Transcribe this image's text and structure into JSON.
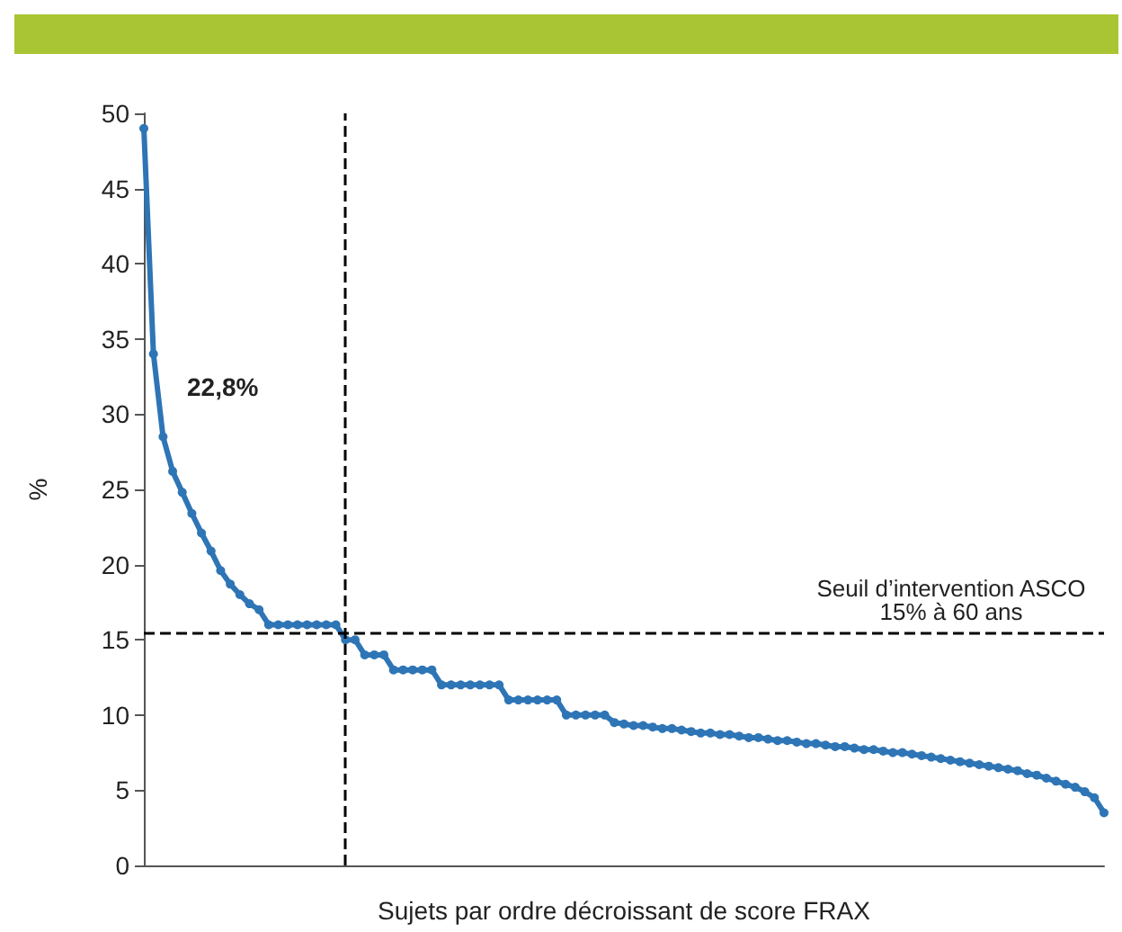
{
  "chart_data": {
    "type": "line",
    "xlabel": "Sujets par ordre décroissant de score FRAX",
    "ylabel": "%",
    "categories": [
      null,
      null,
      null,
      null,
      null,
      null,
      null,
      null,
      null,
      null,
      null,
      null,
      null,
      null,
      null,
      null,
      null,
      null,
      null,
      null,
      null,
      null,
      null,
      null,
      null,
      null,
      null,
      null,
      null,
      null,
      null,
      null,
      null,
      null,
      null,
      null,
      null,
      null,
      null,
      null,
      null,
      null,
      null,
      null,
      null,
      null,
      null,
      null,
      null,
      null,
      null,
      null,
      null,
      null,
      null,
      null,
      null,
      null,
      null,
      null,
      null,
      null,
      null,
      null,
      null,
      null,
      null,
      null,
      null,
      null,
      null,
      null,
      null,
      null,
      null,
      null,
      null,
      null,
      null,
      null,
      null,
      null,
      null,
      null,
      null,
      null,
      null,
      null,
      null,
      null,
      null,
      null,
      null,
      null,
      null,
      null,
      null,
      null,
      null,
      null,
      null
    ],
    "series": [
      {
        "color": "#2e75b6",
        "values": [
          49,
          34,
          28.5,
          26.2,
          24.8,
          23.4,
          22.1,
          20.9,
          19.6,
          18.7,
          18,
          17.4,
          17,
          16,
          16,
          16,
          16,
          16,
          16,
          16,
          16,
          15,
          15,
          14,
          14,
          14,
          13,
          13,
          13,
          13,
          13,
          12,
          12,
          12,
          12,
          12,
          12,
          12,
          11,
          11,
          11,
          11,
          11,
          11,
          10,
          10,
          10,
          10,
          10,
          9.5,
          9.4,
          9.3,
          9.3,
          9.2,
          9.1,
          9.1,
          9.0,
          8.9,
          8.8,
          8.8,
          8.7,
          8.7,
          8.6,
          8.5,
          8.5,
          8.4,
          8.3,
          8.3,
          8.2,
          8.1,
          8.1,
          8.0,
          7.9,
          7.9,
          7.8,
          7.7,
          7.7,
          7.6,
          7.5,
          7.5,
          7.4,
          7.3,
          7.2,
          7.1,
          7.0,
          6.9,
          6.8,
          6.7,
          6.6,
          6.5,
          6.4,
          6.3,
          6.1,
          6.0,
          5.8,
          5.6,
          5.4,
          5.2,
          4.9,
          4.5,
          3.5
        ]
      }
    ],
    "ylim": [
      0,
      50
    ],
    "yticks": [
      0,
      5,
      10,
      15,
      20,
      25,
      30,
      35,
      40,
      45,
      50
    ],
    "tick_labels": "y",
    "grid": false,
    "marker": "circle",
    "ref_lines": [
      {
        "axis": "y",
        "value": 15.5,
        "label": "Seuil d’intervention ASCO\n15% à 60 ans",
        "color": "#000000",
        "line_style": "dashed"
      }
    ],
    "annotations": [
      "22,8%"
    ]
  }
}
